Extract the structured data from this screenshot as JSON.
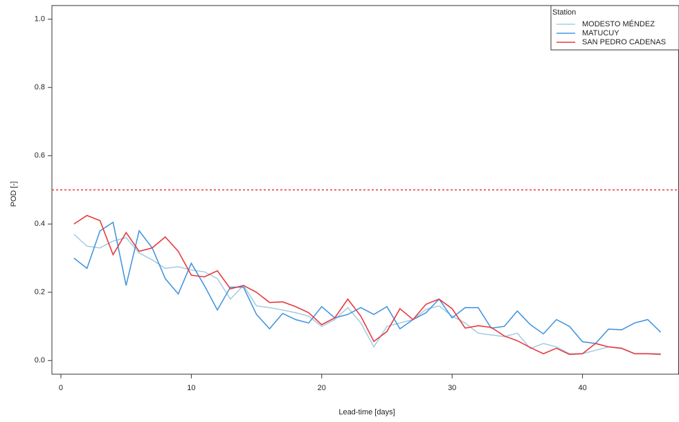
{
  "chart_data": {
    "type": "line",
    "x_label": "Lead-time [days]",
    "y_label": "POD [-]",
    "x": [
      1,
      2,
      3,
      4,
      5,
      6,
      7,
      8,
      9,
      10,
      11,
      12,
      13,
      14,
      15,
      16,
      17,
      18,
      19,
      20,
      21,
      22,
      23,
      24,
      25,
      26,
      27,
      28,
      29,
      30,
      31,
      32,
      33,
      34,
      35,
      36,
      37,
      38,
      39,
      40,
      41,
      42,
      43,
      44,
      45,
      46
    ],
    "series": [
      {
        "name": "MODESTO MÉNDEZ",
        "color": "#a6cee3",
        "values": [
          0.37,
          0.335,
          0.33,
          0.35,
          0.36,
          0.315,
          0.295,
          0.27,
          0.275,
          0.265,
          0.26,
          0.24,
          0.18,
          0.22,
          0.16,
          0.155,
          0.148,
          0.14,
          0.13,
          0.1,
          0.12,
          0.155,
          0.11,
          0.04,
          0.1,
          0.11,
          0.12,
          0.15,
          0.16,
          0.13,
          0.11,
          0.08,
          0.075,
          0.07,
          0.08,
          0.035,
          0.05,
          0.04,
          0.02,
          0.02,
          0.03,
          0.04,
          0.035,
          0.02,
          0.02,
          0.02
        ]
      },
      {
        "name": "MATUCUY",
        "color": "#4596e0",
        "values": [
          0.3,
          0.27,
          0.38,
          0.405,
          0.22,
          0.38,
          0.33,
          0.24,
          0.195,
          0.285,
          0.22,
          0.148,
          0.215,
          0.215,
          0.135,
          0.093,
          0.138,
          0.12,
          0.11,
          0.158,
          0.125,
          0.135,
          0.155,
          0.135,
          0.158,
          0.093,
          0.12,
          0.14,
          0.18,
          0.125,
          0.155,
          0.155,
          0.095,
          0.1,
          0.145,
          0.105,
          0.078,
          0.12,
          0.1,
          0.055,
          0.05,
          0.092,
          0.09,
          0.11,
          0.12,
          0.083
        ]
      },
      {
        "name": "SAN PEDRO CADENAS",
        "color": "#e8383d",
        "values": [
          0.4,
          0.425,
          0.41,
          0.31,
          0.375,
          0.32,
          0.33,
          0.362,
          0.32,
          0.25,
          0.245,
          0.263,
          0.21,
          0.22,
          0.2,
          0.17,
          0.172,
          0.158,
          0.14,
          0.105,
          0.125,
          0.18,
          0.13,
          0.056,
          0.085,
          0.152,
          0.12,
          0.165,
          0.18,
          0.152,
          0.095,
          0.102,
          0.097,
          0.072,
          0.058,
          0.038,
          0.02,
          0.036,
          0.018,
          0.02,
          0.05,
          0.04,
          0.036,
          0.02,
          0.02,
          0.018
        ]
      }
    ],
    "hline": 0.5,
    "hline_color": "#e8383d",
    "legend_title": "Station",
    "legend": "top-right",
    "xlim": [
      -0.69,
      47.4
    ],
    "xticks": [
      0,
      10,
      20,
      30,
      40
    ],
    "ylim": [
      -0.04,
      1.04
    ],
    "yticks": [
      {
        "value": 0,
        "label": "0.0"
      },
      0.2,
      0.4,
      0.6,
      0.8,
      {
        "value": 1,
        "label": "1.0"
      }
    ]
  }
}
